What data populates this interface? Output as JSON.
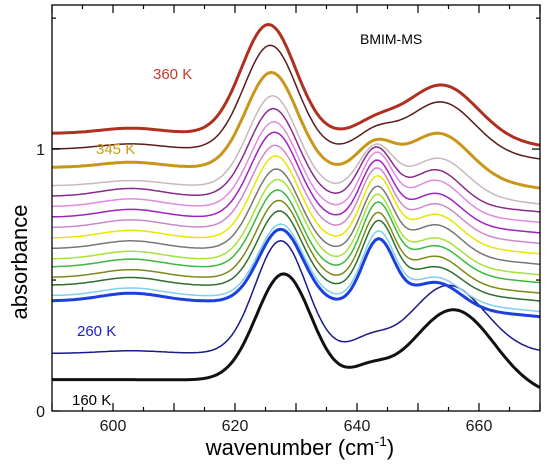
{
  "chart_data": {
    "type": "line",
    "xlabel_main": "wavenumber (cm",
    "xlabel_sup": "-1",
    "xlabel_tail": ")",
    "ylabel": "absorbance",
    "xlim": [
      590,
      670
    ],
    "ylim": [
      0,
      1.55
    ],
    "xticks": [
      600,
      620,
      640,
      660
    ],
    "yticks": [
      0,
      1
    ],
    "grid": false,
    "legend": "none",
    "annotations": [
      {
        "text": "BMIM-MS",
        "color": "#000000"
      },
      {
        "text": "360 K",
        "color": "#c0392b"
      },
      {
        "text": "345 K",
        "color": "#c89a1a"
      },
      {
        "text": "260 K",
        "color": "#1c1cd0"
      },
      {
        "text": "160 K",
        "color": "#000000"
      }
    ],
    "series": [
      {
        "color": "#111111",
        "width": 3.0,
        "baseline": 0.12,
        "peaks": [
          [
            628,
            0.41,
            4.5
          ],
          [
            642,
            0.05,
            3
          ],
          [
            656,
            0.3,
            6.5
          ]
        ],
        "tail": 0.06
      },
      {
        "color": "#1a1a8c",
        "width": 1.5,
        "baseline": 0.22,
        "peaks": [
          [
            627.5,
            0.43,
            4.2
          ],
          [
            642,
            0.05,
            3
          ],
          [
            655,
            0.26,
            6
          ],
          [
            603,
            0.01,
            5
          ]
        ],
        "tail": 0.22
      },
      {
        "color": "#1c3fe0",
        "width": 3.0,
        "baseline": 0.42,
        "peaks": [
          [
            627.5,
            0.28,
            3.6
          ],
          [
            643.5,
            0.25,
            2.6
          ],
          [
            653,
            0.1,
            4
          ],
          [
            603,
            0.03,
            5
          ]
        ],
        "tail": 0.36
      },
      {
        "color": "#7fd0ea",
        "width": 1.5,
        "baseline": 0.44,
        "peaks": [
          [
            627.5,
            0.28,
            3.6
          ],
          [
            643.5,
            0.26,
            2.6
          ],
          [
            653,
            0.1,
            4
          ],
          [
            603,
            0.03,
            5
          ]
        ],
        "tail": 0.38
      },
      {
        "color": "#2e6e2e",
        "width": 1.5,
        "baseline": 0.48,
        "peaks": [
          [
            627.3,
            0.29,
            3.6
          ],
          [
            643.5,
            0.26,
            2.6
          ],
          [
            653,
            0.1,
            4
          ],
          [
            603,
            0.03,
            5
          ]
        ],
        "tail": 0.42
      },
      {
        "color": "#7a8a1a",
        "width": 1.5,
        "baseline": 0.51,
        "peaks": [
          [
            627.2,
            0.3,
            3.7
          ],
          [
            643.4,
            0.26,
            2.6
          ],
          [
            653,
            0.11,
            4
          ],
          [
            603,
            0.03,
            5
          ]
        ],
        "tail": 0.45
      },
      {
        "color": "#3cb83c",
        "width": 1.5,
        "baseline": 0.55,
        "peaks": [
          [
            627,
            0.3,
            3.7
          ],
          [
            643.4,
            0.26,
            2.6
          ],
          [
            653,
            0.11,
            4
          ],
          [
            603,
            0.03,
            5
          ]
        ],
        "tail": 0.49
      },
      {
        "color": "#a6e23a",
        "width": 1.5,
        "baseline": 0.58,
        "peaks": [
          [
            627,
            0.31,
            3.8
          ],
          [
            643.3,
            0.26,
            2.6
          ],
          [
            653,
            0.11,
            4
          ],
          [
            603,
            0.03,
            5
          ]
        ],
        "tail": 0.52
      },
      {
        "color": "#777777",
        "width": 1.5,
        "baseline": 0.62,
        "peaks": [
          [
            626.8,
            0.31,
            3.8
          ],
          [
            643.3,
            0.25,
            2.6
          ],
          [
            653,
            0.12,
            4
          ],
          [
            603,
            0.03,
            5
          ]
        ],
        "tail": 0.56
      },
      {
        "color": "#e6e600",
        "width": 1.5,
        "baseline": 0.66,
        "peaks": [
          [
            626.7,
            0.32,
            3.8
          ],
          [
            643.3,
            0.25,
            2.6
          ],
          [
            653,
            0.12,
            4
          ],
          [
            603,
            0.03,
            5
          ]
        ],
        "tail": 0.6
      },
      {
        "color": "#cc88cc",
        "width": 1.5,
        "baseline": 0.7,
        "peaks": [
          [
            626.6,
            0.32,
            3.9
          ],
          [
            643.2,
            0.24,
            2.6
          ],
          [
            653,
            0.12,
            4
          ],
          [
            603,
            0.03,
            5
          ]
        ],
        "tail": 0.64
      },
      {
        "color": "#a020c0",
        "width": 1.5,
        "baseline": 0.74,
        "peaks": [
          [
            626.5,
            0.33,
            3.9
          ],
          [
            643.2,
            0.23,
            2.6
          ],
          [
            653,
            0.12,
            4
          ],
          [
            603,
            0.03,
            5
          ]
        ],
        "tail": 0.68
      },
      {
        "color": "#e08ae0",
        "width": 1.5,
        "baseline": 0.78,
        "peaks": [
          [
            626.4,
            0.33,
            3.9
          ],
          [
            643.2,
            0.22,
            2.6
          ],
          [
            653,
            0.13,
            4
          ],
          [
            603,
            0.03,
            5
          ]
        ],
        "tail": 0.72
      },
      {
        "color": "#8a2a8a",
        "width": 1.5,
        "baseline": 0.82,
        "peaks": [
          [
            626.3,
            0.34,
            4.0
          ],
          [
            643.1,
            0.2,
            2.7
          ],
          [
            653,
            0.13,
            4
          ],
          [
            603,
            0.03,
            5
          ]
        ],
        "tail": 0.76
      },
      {
        "color": "#c8b8b8",
        "width": 1.5,
        "baseline": 0.86,
        "peaks": [
          [
            626.2,
            0.35,
            4.0
          ],
          [
            643.1,
            0.17,
            2.8
          ],
          [
            653.5,
            0.14,
            4.5
          ],
          [
            603,
            0.02,
            5
          ]
        ],
        "tail": 0.79
      },
      {
        "color": "#c8961a",
        "width": 3.0,
        "baseline": 0.93,
        "peaks": [
          [
            626,
            0.37,
            4.2
          ],
          [
            643,
            0.11,
            3.0
          ],
          [
            653.5,
            0.17,
            5.0
          ],
          [
            603,
            0.02,
            5
          ]
        ],
        "tail": 0.85
      },
      {
        "color": "#5a1a1a",
        "width": 1.5,
        "baseline": 1.0,
        "peaks": [
          [
            625.8,
            0.4,
            4.3
          ],
          [
            643,
            0.07,
            3.2
          ],
          [
            653.8,
            0.2,
            5.5
          ],
          [
            603,
            0.02,
            5
          ]
        ],
        "tail": 0.96
      },
      {
        "color": "#b03020",
        "width": 3.0,
        "baseline": 1.06,
        "peaks": [
          [
            625.5,
            0.42,
            4.4
          ],
          [
            643,
            0.05,
            3.4
          ],
          [
            654,
            0.21,
            5.8
          ],
          [
            603,
            0.02,
            5
          ]
        ],
        "tail": 1.01
      }
    ]
  }
}
